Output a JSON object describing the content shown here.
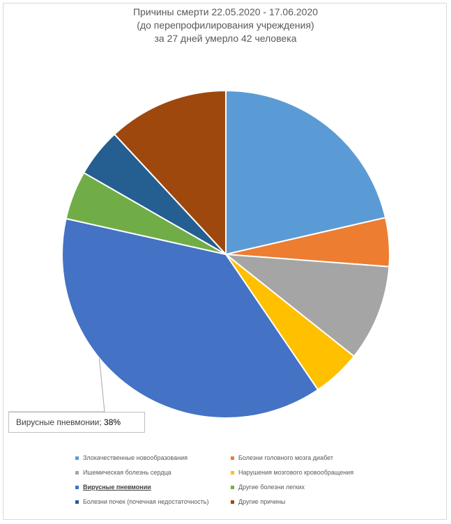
{
  "chart_data": {
    "type": "pie",
    "title_lines": [
      "Причины смерти 22.05.2020 - 17.06.2020",
      "(до перепрофилирования учреждения)",
      "за 27 дней умерло 42 человека"
    ],
    "categories": [
      "Злокачественные новообразования",
      "Болезни головного мозга диабет",
      "Ишемическая болезнь сердца",
      "Нарушения мозгового кровообращения",
      "Вирусные пневмонии",
      "Другие болезни легких",
      "Болезни почек (почечная недостаточность)",
      "Другие причины"
    ],
    "values": [
      21.4,
      4.8,
      9.5,
      4.8,
      38,
      4.8,
      4.8,
      11.9
    ],
    "colors": [
      "#5B9BD5",
      "#ED7D31",
      "#A5A5A5",
      "#FFC000",
      "#4472C4",
      "#70AD47",
      "#255E91",
      "#9E480E"
    ],
    "highlighted_index": 4,
    "data_label": {
      "category": "Вирусные пневмонии",
      "separator": "; ",
      "value": "38%"
    },
    "legend_position": "bottom"
  }
}
